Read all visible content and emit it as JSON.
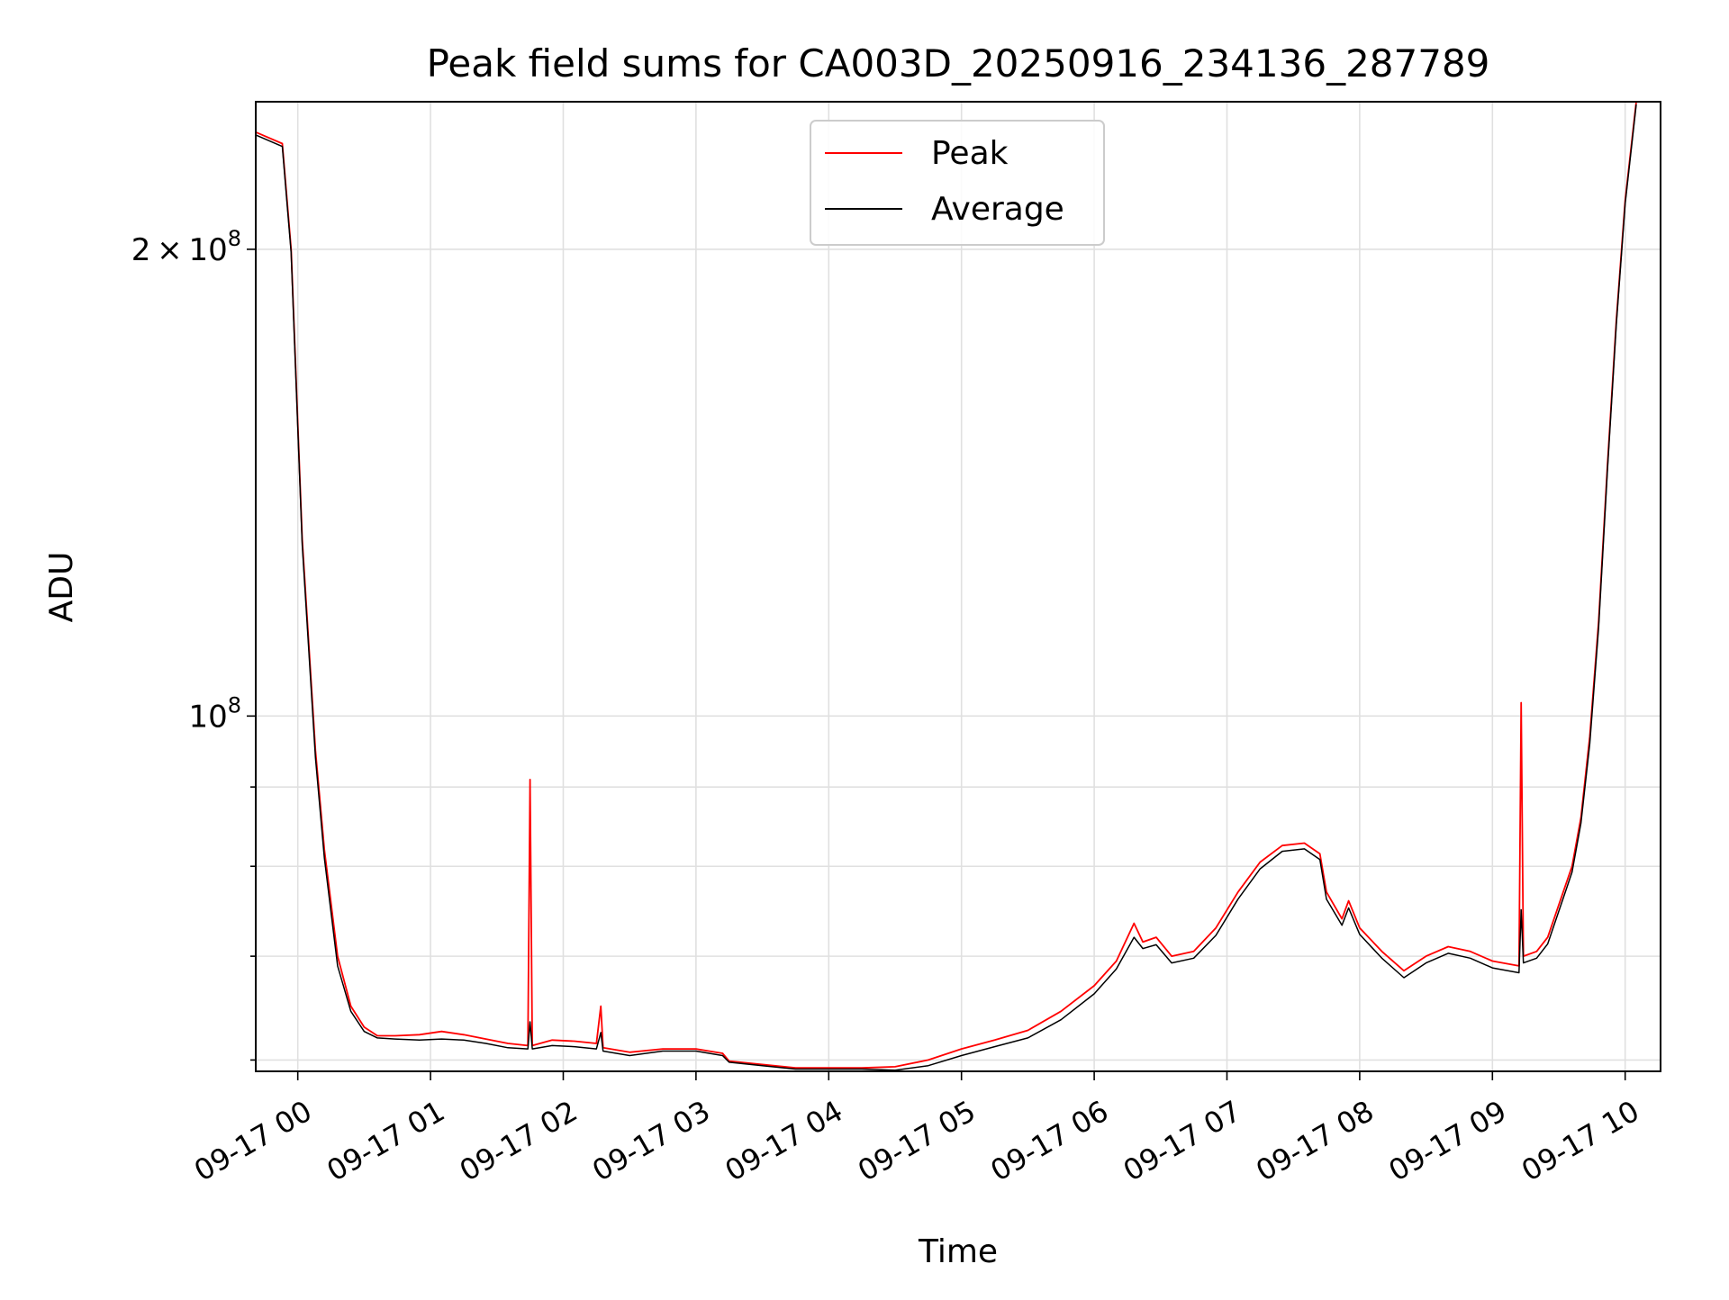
{
  "chart_data": {
    "type": "line",
    "title": "Peak field sums for CA003D_20250916_234136_287789",
    "xlabel": "Time",
    "ylabel": "ADU",
    "y_scale": "log",
    "ylim": [
      59000000,
      249000000
    ],
    "xlim": [
      "2025-09-16 23:41",
      "2025-09-17 10:16"
    ],
    "grid": true,
    "legend_placement": "upper center",
    "x_ticks": [
      {
        "t": "2025-09-17 00:00",
        "label": "09-17 00"
      },
      {
        "t": "2025-09-17 01:00",
        "label": "09-17 01"
      },
      {
        "t": "2025-09-17 02:00",
        "label": "09-17 02"
      },
      {
        "t": "2025-09-17 03:00",
        "label": "09-17 03"
      },
      {
        "t": "2025-09-17 04:00",
        "label": "09-17 04"
      },
      {
        "t": "2025-09-17 05:00",
        "label": "09-17 05"
      },
      {
        "t": "2025-09-17 06:00",
        "label": "09-17 06"
      },
      {
        "t": "2025-09-17 07:00",
        "label": "09-17 07"
      },
      {
        "t": "2025-09-17 08:00",
        "label": "09-17 08"
      },
      {
        "t": "2025-09-17 09:00",
        "label": "09-17 09"
      },
      {
        "t": "2025-09-17 10:00",
        "label": "09-17 10"
      }
    ],
    "y_ticks_major": [
      {
        "value": 100000000,
        "base": "10",
        "exp": "8",
        "coef": ""
      },
      {
        "value": 200000000,
        "base": "10",
        "exp": "8",
        "coef": "2"
      }
    ],
    "y_ticks_minor": [
      60000000,
      70000000,
      80000000,
      90000000
    ],
    "series": [
      {
        "name": "Peak",
        "color": "#ff0000",
        "points": [
          [
            "2025-09-16 23:41",
            238000000
          ],
          [
            "2025-09-16 23:53",
            234000000
          ],
          [
            "2025-09-16 23:57",
            200000000
          ],
          [
            "2025-09-17 00:02",
            130000000
          ],
          [
            "2025-09-17 00:08",
            95000000
          ],
          [
            "2025-09-17 00:12",
            82000000
          ],
          [
            "2025-09-17 00:18",
            70000000
          ],
          [
            "2025-09-17 00:24",
            65000000
          ],
          [
            "2025-09-17 00:30",
            63000000
          ],
          [
            "2025-09-17 00:36",
            62200000
          ],
          [
            "2025-09-17 00:44",
            62200000
          ],
          [
            "2025-09-17 00:55",
            62300000
          ],
          [
            "2025-09-17 01:05",
            62600000
          ],
          [
            "2025-09-17 01:15",
            62300000
          ],
          [
            "2025-09-17 01:25",
            61900000
          ],
          [
            "2025-09-17 01:35",
            61500000
          ],
          [
            "2025-09-17 01:44",
            61300000
          ],
          [
            "2025-09-17 01:45",
            91000000
          ],
          [
            "2025-09-17 01:46",
            61300000
          ],
          [
            "2025-09-17 01:55",
            61800000
          ],
          [
            "2025-09-17 02:05",
            61700000
          ],
          [
            "2025-09-17 02:15",
            61500000
          ],
          [
            "2025-09-17 02:17",
            65000000
          ],
          [
            "2025-09-17 02:18",
            61100000
          ],
          [
            "2025-09-17 02:30",
            60700000
          ],
          [
            "2025-09-17 02:45",
            61000000
          ],
          [
            "2025-09-17 03:00",
            61000000
          ],
          [
            "2025-09-17 03:12",
            60600000
          ],
          [
            "2025-09-17 03:15",
            59900000
          ],
          [
            "2025-09-17 03:30",
            59600000
          ],
          [
            "2025-09-17 03:45",
            59300000
          ],
          [
            "2025-09-17 04:00",
            59300000
          ],
          [
            "2025-09-17 04:15",
            59300000
          ],
          [
            "2025-09-17 04:30",
            59400000
          ],
          [
            "2025-09-17 04:45",
            60000000
          ],
          [
            "2025-09-17 05:00",
            61000000
          ],
          [
            "2025-09-17 05:15",
            61800000
          ],
          [
            "2025-09-17 05:30",
            62700000
          ],
          [
            "2025-09-17 05:45",
            64500000
          ],
          [
            "2025-09-17 06:00",
            67000000
          ],
          [
            "2025-09-17 06:10",
            69500000
          ],
          [
            "2025-09-17 06:18",
            73500000
          ],
          [
            "2025-09-17 06:22",
            71500000
          ],
          [
            "2025-09-17 06:28",
            72000000
          ],
          [
            "2025-09-17 06:35",
            70000000
          ],
          [
            "2025-09-17 06:45",
            70500000
          ],
          [
            "2025-09-17 06:55",
            73000000
          ],
          [
            "2025-09-17 07:05",
            77000000
          ],
          [
            "2025-09-17 07:15",
            80500000
          ],
          [
            "2025-09-17 07:25",
            82500000
          ],
          [
            "2025-09-17 07:35",
            82800000
          ],
          [
            "2025-09-17 07:42",
            81500000
          ],
          [
            "2025-09-17 07:45",
            77000000
          ],
          [
            "2025-09-17 07:52",
            74000000
          ],
          [
            "2025-09-17 07:55",
            76000000
          ],
          [
            "2025-09-17 08:00",
            73000000
          ],
          [
            "2025-09-17 08:10",
            70500000
          ],
          [
            "2025-09-17 08:20",
            68500000
          ],
          [
            "2025-09-17 08:30",
            70000000
          ],
          [
            "2025-09-17 08:40",
            71000000
          ],
          [
            "2025-09-17 08:50",
            70500000
          ],
          [
            "2025-09-17 09:00",
            69500000
          ],
          [
            "2025-09-17 09:12",
            69000000
          ],
          [
            "2025-09-17 09:13",
            102000000
          ],
          [
            "2025-09-17 09:14",
            70000000
          ],
          [
            "2025-09-17 09:20",
            70500000
          ],
          [
            "2025-09-17 09:25",
            72000000
          ],
          [
            "2025-09-17 09:32",
            77000000
          ],
          [
            "2025-09-17 09:36",
            80000000
          ],
          [
            "2025-09-17 09:40",
            86000000
          ],
          [
            "2025-09-17 09:44",
            97000000
          ],
          [
            "2025-09-17 09:48",
            115000000
          ],
          [
            "2025-09-17 09:52",
            145000000
          ],
          [
            "2025-09-17 09:56",
            180000000
          ],
          [
            "2025-09-17 10:00",
            215000000
          ],
          [
            "2025-09-17 10:05",
            249000000
          ]
        ]
      },
      {
        "name": "Average",
        "color": "#000000",
        "points": [
          [
            "2025-09-16 23:41",
            237000000
          ],
          [
            "2025-09-16 23:53",
            233000000
          ],
          [
            "2025-09-16 23:57",
            199000000
          ],
          [
            "2025-09-17 00:02",
            129000000
          ],
          [
            "2025-09-17 00:08",
            94000000
          ],
          [
            "2025-09-17 00:12",
            81000000
          ],
          [
            "2025-09-17 00:18",
            69000000
          ],
          [
            "2025-09-17 00:24",
            64500000
          ],
          [
            "2025-09-17 00:30",
            62600000
          ],
          [
            "2025-09-17 00:36",
            62000000
          ],
          [
            "2025-09-17 00:44",
            61900000
          ],
          [
            "2025-09-17 00:55",
            61800000
          ],
          [
            "2025-09-17 01:05",
            61900000
          ],
          [
            "2025-09-17 01:15",
            61800000
          ],
          [
            "2025-09-17 01:25",
            61500000
          ],
          [
            "2025-09-17 01:35",
            61100000
          ],
          [
            "2025-09-17 01:44",
            61000000
          ],
          [
            "2025-09-17 01:45",
            63500000
          ],
          [
            "2025-09-17 01:46",
            61000000
          ],
          [
            "2025-09-17 01:55",
            61300000
          ],
          [
            "2025-09-17 02:05",
            61200000
          ],
          [
            "2025-09-17 02:15",
            61000000
          ],
          [
            "2025-09-17 02:17",
            62500000
          ],
          [
            "2025-09-17 02:18",
            60800000
          ],
          [
            "2025-09-17 02:30",
            60400000
          ],
          [
            "2025-09-17 02:45",
            60800000
          ],
          [
            "2025-09-17 03:00",
            60800000
          ],
          [
            "2025-09-17 03:12",
            60400000
          ],
          [
            "2025-09-17 03:15",
            59800000
          ],
          [
            "2025-09-17 03:30",
            59500000
          ],
          [
            "2025-09-17 03:45",
            59200000
          ],
          [
            "2025-09-17 04:00",
            59200000
          ],
          [
            "2025-09-17 04:15",
            59200000
          ],
          [
            "2025-09-17 04:30",
            59100000
          ],
          [
            "2025-09-17 04:45",
            59500000
          ],
          [
            "2025-09-17 05:00",
            60400000
          ],
          [
            "2025-09-17 05:15",
            61200000
          ],
          [
            "2025-09-17 05:30",
            62000000
          ],
          [
            "2025-09-17 05:45",
            63700000
          ],
          [
            "2025-09-17 06:00",
            66200000
          ],
          [
            "2025-09-17 06:10",
            68700000
          ],
          [
            "2025-09-17 06:18",
            72000000
          ],
          [
            "2025-09-17 06:22",
            70800000
          ],
          [
            "2025-09-17 06:28",
            71200000
          ],
          [
            "2025-09-17 06:35",
            69300000
          ],
          [
            "2025-09-17 06:45",
            69800000
          ],
          [
            "2025-09-17 06:55",
            72200000
          ],
          [
            "2025-09-17 07:05",
            76200000
          ],
          [
            "2025-09-17 07:15",
            79700000
          ],
          [
            "2025-09-17 07:25",
            81800000
          ],
          [
            "2025-09-17 07:35",
            82100000
          ],
          [
            "2025-09-17 07:42",
            80800000
          ],
          [
            "2025-09-17 07:45",
            76200000
          ],
          [
            "2025-09-17 07:52",
            73300000
          ],
          [
            "2025-09-17 07:55",
            75200000
          ],
          [
            "2025-09-17 08:00",
            72300000
          ],
          [
            "2025-09-17 08:10",
            69800000
          ],
          [
            "2025-09-17 08:20",
            67800000
          ],
          [
            "2025-09-17 08:30",
            69300000
          ],
          [
            "2025-09-17 08:40",
            70300000
          ],
          [
            "2025-09-17 08:50",
            69800000
          ],
          [
            "2025-09-17 09:00",
            68800000
          ],
          [
            "2025-09-17 09:12",
            68300000
          ],
          [
            "2025-09-17 09:13",
            75000000
          ],
          [
            "2025-09-17 09:14",
            69300000
          ],
          [
            "2025-09-17 09:20",
            69800000
          ],
          [
            "2025-09-17 09:25",
            71300000
          ],
          [
            "2025-09-17 09:32",
            76300000
          ],
          [
            "2025-09-17 09:36",
            79300000
          ],
          [
            "2025-09-17 09:40",
            85300000
          ],
          [
            "2025-09-17 09:44",
            96000000
          ],
          [
            "2025-09-17 09:48",
            114000000
          ],
          [
            "2025-09-17 09:52",
            144000000
          ],
          [
            "2025-09-17 09:56",
            179000000
          ],
          [
            "2025-09-17 10:00",
            214000000
          ],
          [
            "2025-09-17 10:05",
            248000000
          ]
        ]
      }
    ]
  }
}
